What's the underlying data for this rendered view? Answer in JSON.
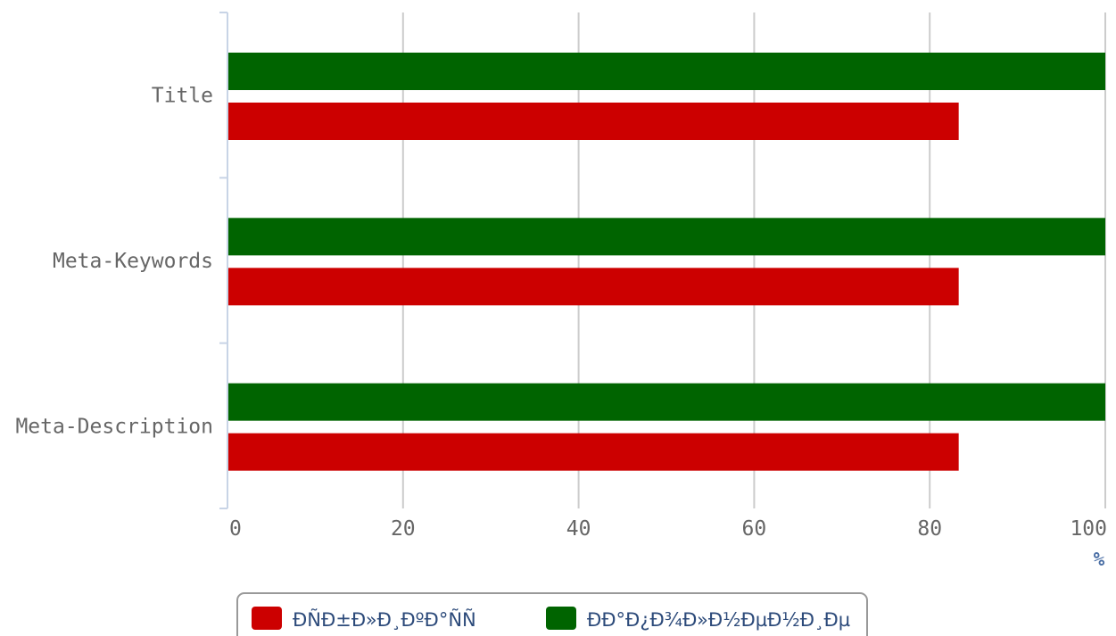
{
  "chart_data": {
    "type": "bar",
    "orientation": "horizontal",
    "categories": [
      "Title",
      "Meta-Keywords",
      "Meta-Description"
    ],
    "series": [
      {
        "name": "ÐÑÐ±Ð»Ð¸ÐºÐ°ÑÑ",
        "color": "#cc0000",
        "values": [
          83.3,
          83.3,
          83.3
        ]
      },
      {
        "name": "ÐÐ°Ð¿Ð¾Ð»Ð½ÐµÐ½Ð¸Ðµ",
        "color": "#006400",
        "values": [
          100,
          100,
          100
        ]
      }
    ],
    "xticks": [
      "0",
      "20",
      "40",
      "60",
      "80",
      "100"
    ],
    "xlim": [
      0,
      100
    ],
    "xunit": "%",
    "grid": true,
    "legend_position": "bottom"
  }
}
